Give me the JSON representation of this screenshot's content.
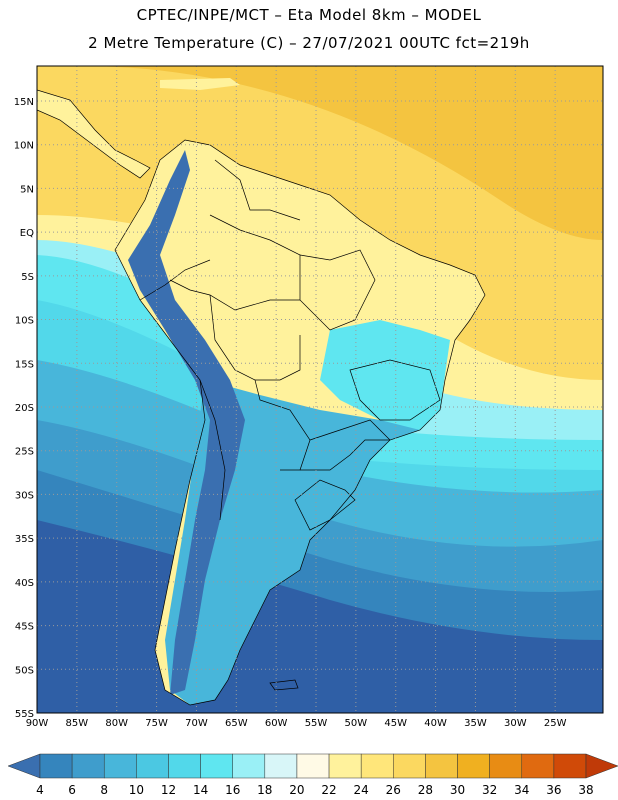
{
  "header": {
    "title_line1": "CPTEC/INPE/MCT –  Eta Model 8km – MODEL",
    "title_line2": "2 Metre Temperature (C) – 27/07/2021 00UTC fct=219h"
  },
  "map": {
    "lon_range": [
      -90,
      -19
    ],
    "lat_range": [
      -55,
      19
    ],
    "lon_ticks": [
      "90W",
      "85W",
      "80W",
      "75W",
      "70W",
      "65W",
      "60W",
      "55W",
      "50W",
      "45W",
      "40W",
      "35W",
      "30W",
      "25W"
    ],
    "lat_ticks": [
      "15N",
      "10N",
      "5N",
      "EQ",
      "5S",
      "10S",
      "15S",
      "20S",
      "25S",
      "30S",
      "35S",
      "40S",
      "45S",
      "50S",
      "55S"
    ],
    "grid": true
  },
  "colorbar": {
    "labels": [
      "4",
      "6",
      "8",
      "10",
      "12",
      "14",
      "16",
      "18",
      "20",
      "22",
      "24",
      "26",
      "28",
      "30",
      "32",
      "34",
      "36",
      "38"
    ],
    "colors": [
      "#3a6fb0",
      "#3585bd",
      "#3f9dcc",
      "#48b6da",
      "#4bc8e2",
      "#52d8ea",
      "#5fe6f0",
      "#9af0f6",
      "#d8f6f8",
      "#fffae6",
      "#fff29c",
      "#ffe67a",
      "#fbd860",
      "#f4c440",
      "#f0b020",
      "#e88c14",
      "#e06a10",
      "#d04a08",
      "#c03a08"
    ]
  },
  "legend_colors": {
    "ocean_south": "#2f5fa6",
    "ocean_mid": "#48b6da",
    "tropics": "#fbd860",
    "andes": "#3a6fb0",
    "lowland_warm": "#fff29c"
  }
}
